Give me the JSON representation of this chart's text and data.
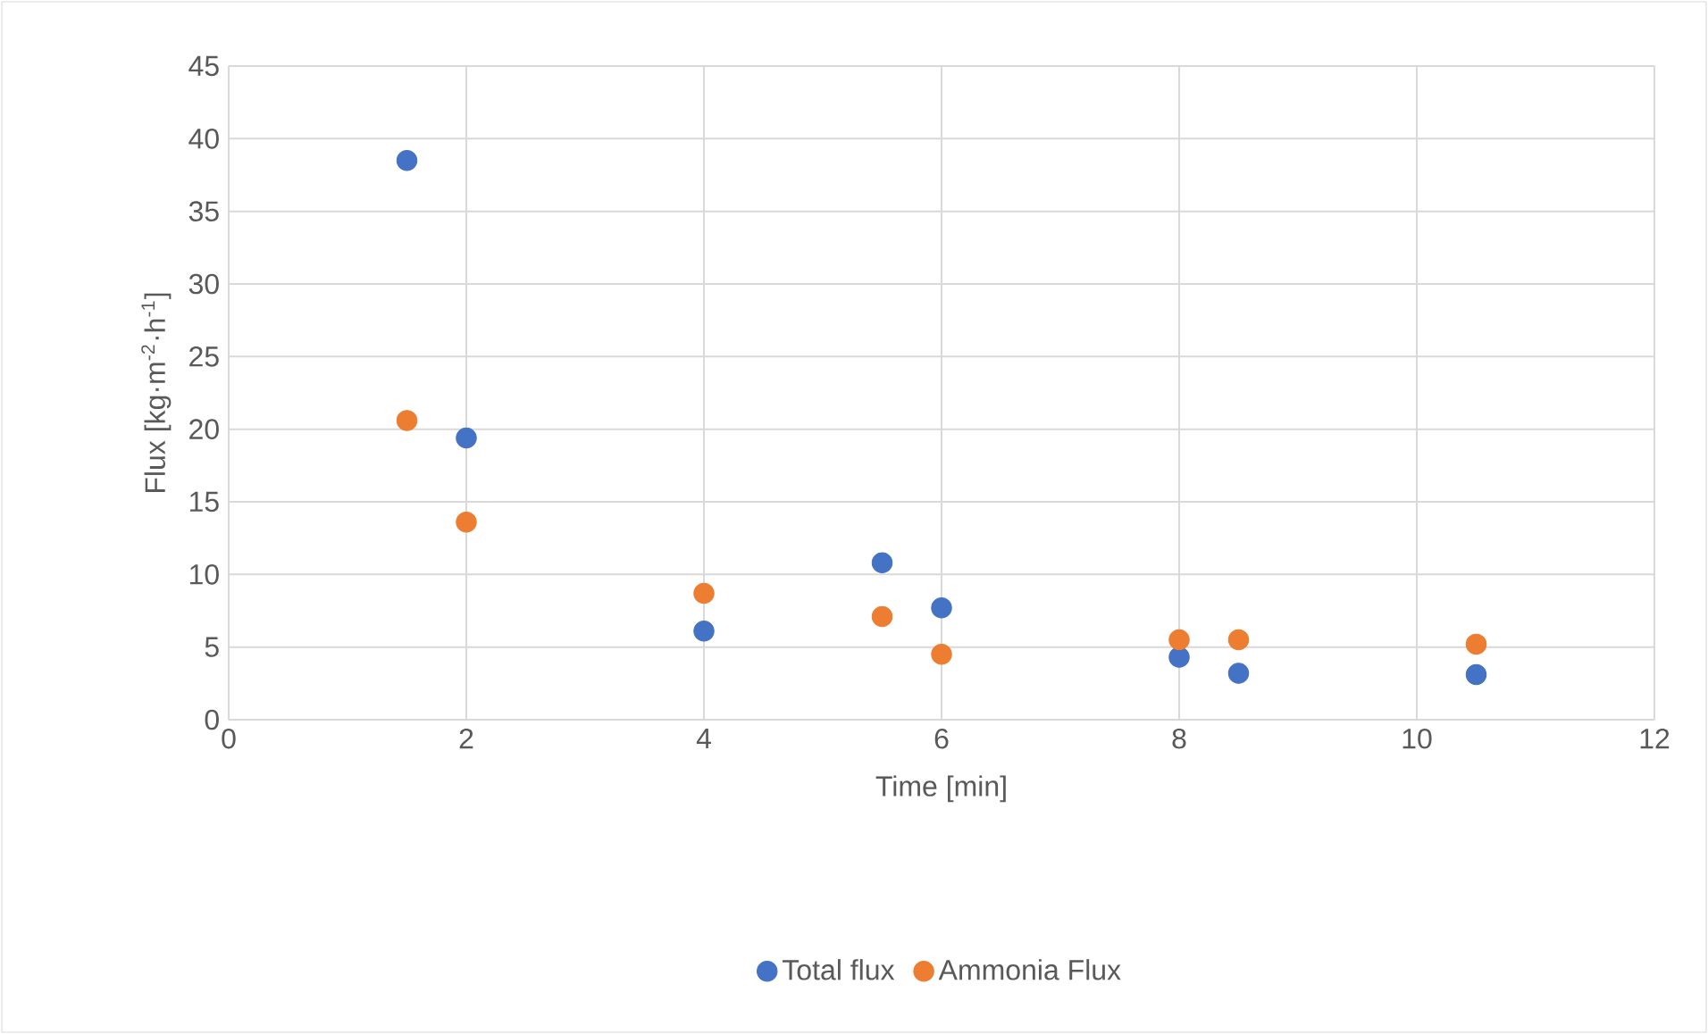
{
  "chart_data": {
    "type": "scatter",
    "xlabel": "Time [min]",
    "ylabel": "Flux [kg·m$^{-2}$·h$^{-1}$]",
    "xlim": [
      0,
      12
    ],
    "ylim": [
      0,
      45
    ],
    "xticks": [
      0,
      2,
      4,
      6,
      8,
      10,
      12
    ],
    "yticks": [
      0,
      5,
      10,
      15,
      20,
      25,
      30,
      35,
      40,
      45
    ],
    "grid": true,
    "legend": "bottom",
    "marker": "circle",
    "series": [
      {
        "name": "Total flux",
        "color": "#4472c4",
        "x": [
          1.5,
          2,
          4,
          5.5,
          6,
          8,
          8.5,
          10.5
        ],
        "values": [
          38.5,
          19.4,
          6.1,
          10.8,
          7.7,
          4.3,
          3.2,
          3.1
        ]
      },
      {
        "name": "Ammonia Flux",
        "color": "#ed7d31",
        "x": [
          1.5,
          2,
          4,
          5.5,
          6,
          8,
          8.5,
          10.5
        ],
        "values": [
          20.6,
          13.6,
          8.7,
          7.1,
          4.5,
          5.5,
          5.5,
          5.2
        ]
      }
    ]
  }
}
